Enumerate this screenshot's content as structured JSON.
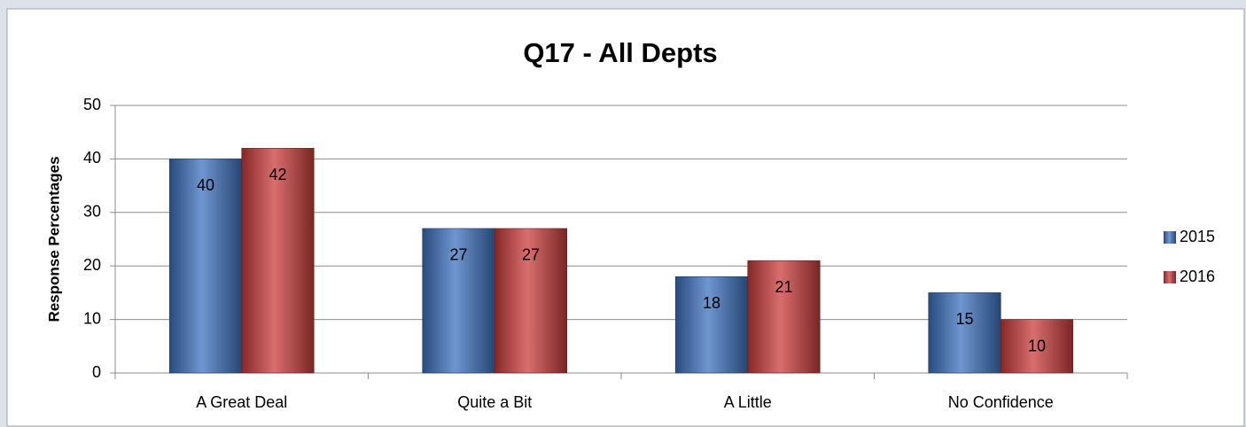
{
  "chart_data": {
    "type": "bar",
    "title": "Q17 - All Depts",
    "y_label": "Response Percentages",
    "categories": [
      "A Great Deal",
      "Quite a Bit",
      "A Little",
      "No Confidence"
    ],
    "series": [
      {
        "name": "2015",
        "color": "#3f73c0",
        "values": [
          40,
          27,
          18,
          15
        ]
      },
      {
        "name": "2016",
        "color": "#cc3d3d",
        "values": [
          42,
          27,
          21,
          10
        ]
      }
    ],
    "ylim": [
      0,
      50
    ],
    "yticks": [
      0,
      10,
      20,
      30,
      40,
      50
    ],
    "grid": true,
    "legend": "right"
  }
}
